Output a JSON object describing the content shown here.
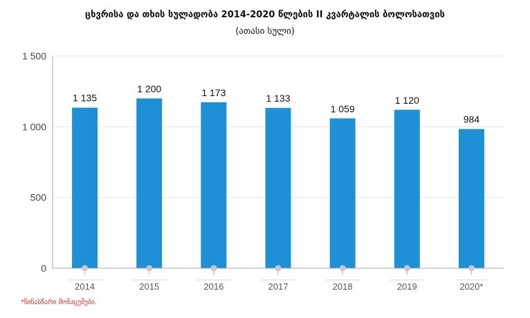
{
  "chart_data": {
    "type": "bar",
    "title": "ცხვრისა და თხის სულადობა 2014-2020 წლების II კვარტალის ბოლოსათვის",
    "subtitle": "(ათასი სული)",
    "categories": [
      "2014",
      "2015",
      "2016",
      "2017",
      "2018",
      "2019",
      "2020*"
    ],
    "values": [
      1135,
      1200,
      1173,
      1133,
      1059,
      1120,
      984
    ],
    "value_labels": [
      "1 135",
      "1 200",
      "1 173",
      "1 133",
      "1 059",
      "1 120",
      "984"
    ],
    "y_ticks": [
      0,
      500,
      1000,
      1500
    ],
    "y_tick_labels": [
      "0",
      "500",
      "1 000",
      "1 500"
    ],
    "ylim": [
      0,
      1500
    ],
    "xlabel": "",
    "ylabel": "",
    "grid": true,
    "legend": "none",
    "bar_color": "#1f8fd6",
    "grid_color": "#e4e4e4",
    "axis_color": "#a9a9a9",
    "marker_color": "#c8c8c8"
  },
  "footnote": "*წინასწარი მონაცემები."
}
